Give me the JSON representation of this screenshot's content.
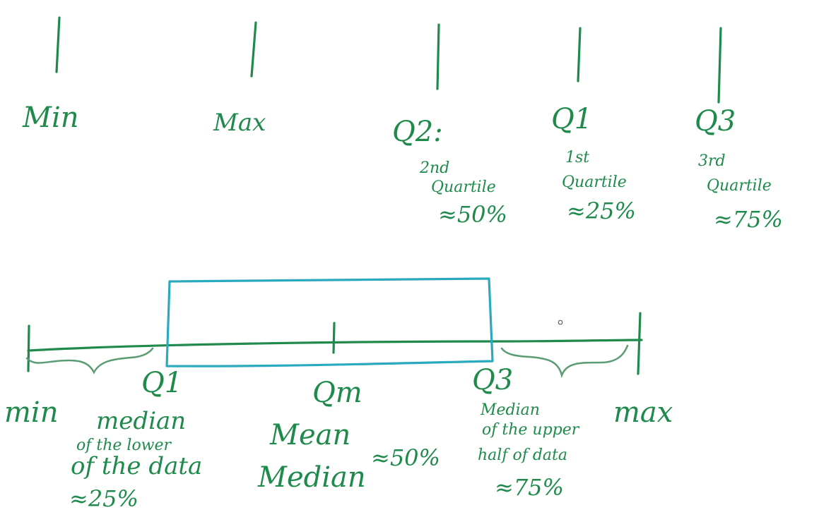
{
  "top_row": {
    "min": {
      "label": "Min"
    },
    "max": {
      "label": "Max"
    },
    "q2": {
      "label": "Q2:",
      "desc_line1": "2nd",
      "desc_line2": "Quartile",
      "pct": "≈50%"
    },
    "q1": {
      "label": "Q1",
      "desc_line1": "1st",
      "desc_line2": "Quartile",
      "pct": "≈25%"
    },
    "q3": {
      "label": "Q3",
      "desc_line1": "3rd",
      "desc_line2": "Quartile",
      "pct": "≈75%"
    }
  },
  "boxplot": {
    "min_label": "min",
    "max_label": "max",
    "q1_label": "Q1",
    "q1_desc": [
      "median",
      "of the lower",
      "of the data"
    ],
    "q1_pct": "≈25%",
    "qm_label": "Qm",
    "qm_desc": [
      "Mean",
      "Median"
    ],
    "qm_pct": "≈50%",
    "q3_label": "Q3",
    "q3_desc": [
      "Median",
      "of the upper",
      "half of data"
    ],
    "q3_pct": "≈75%"
  },
  "colors": {
    "ink_green": "#1f8a4c",
    "box_blue": "#2aa9bf"
  }
}
